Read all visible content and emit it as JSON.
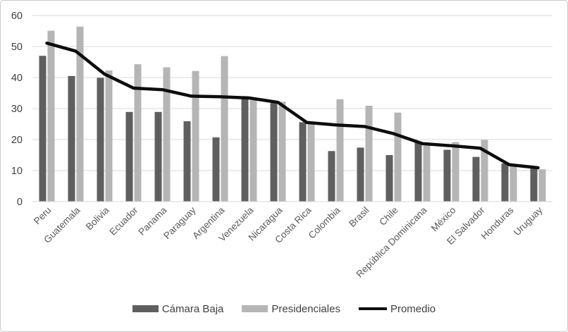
{
  "chart_data": {
    "type": "bar",
    "title": "",
    "categories": [
      "Peru",
      "Guatemala",
      "Bolivia",
      "Ecuador",
      "Panama",
      "Paraguay",
      "Argentina",
      "Venezuela",
      "Nicaragua",
      "Costa Rica",
      "Colombia",
      "Brasil",
      "Chile",
      "República Dominicana",
      "México",
      "El Salvador",
      "Honduras",
      "Uruguay"
    ],
    "series": [
      {
        "name": "Cámara Baja",
        "type": "bar",
        "color": "#5f5f5f",
        "values": [
          47,
          40.5,
          39.9,
          28.9,
          28.9,
          25.9,
          20.7,
          34,
          31.8,
          25.6,
          16.3,
          17.4,
          15,
          19.2,
          16.7,
          14.4,
          12.3,
          11.4
        ]
      },
      {
        "name": "Presidenciales",
        "type": "bar",
        "color": "#b5b5b5",
        "values": [
          55.1,
          56.4,
          42.3,
          44.3,
          43.3,
          42.1,
          46.9,
          32.7,
          32.2,
          25.4,
          33,
          30.9,
          28.7,
          18.2,
          19.2,
          19.9,
          11.4,
          10.4
        ]
      },
      {
        "name": "Promedio",
        "type": "line",
        "color": "#0d0d0d",
        "values": [
          51.1,
          48.5,
          41.1,
          36.6,
          36.1,
          34,
          33.8,
          33.4,
          32,
          25.5,
          24.7,
          24.2,
          21.9,
          18.7,
          18,
          17.2,
          11.9,
          10.9
        ]
      }
    ],
    "xlabel": "",
    "ylabel": "",
    "ylim": [
      0,
      60
    ],
    "yticks": [
      0,
      10,
      20,
      30,
      40,
      50,
      60
    ],
    "grid": "horizontal",
    "legend_position": "bottom",
    "colors": {
      "gridline": "#d9d9d9",
      "axis_line": "#d9d9d9",
      "y_tick_label": "#404040",
      "category_label": "#595959",
      "background": "#ffffff",
      "frame_border": "#c9c9c9"
    }
  }
}
